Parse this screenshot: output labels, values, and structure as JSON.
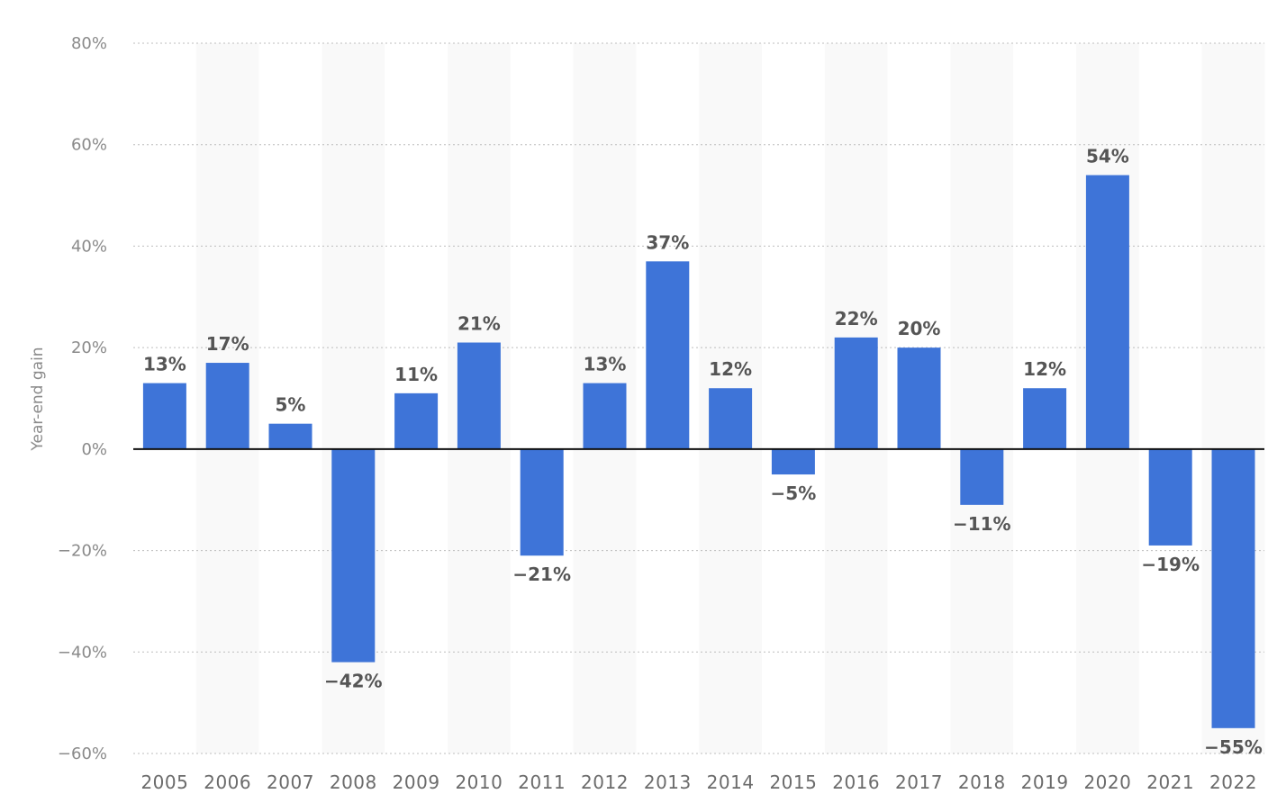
{
  "chart_data": {
    "type": "bar",
    "title": "",
    "xlabel": "",
    "ylabel": "Year-end gain",
    "ylim": [
      -60,
      80
    ],
    "yticks": [
      80,
      60,
      40,
      20,
      0,
      -20,
      -40,
      -60
    ],
    "ytick_suffix": "%",
    "grid": true,
    "categories": [
      "2005",
      "2006",
      "2007",
      "2008",
      "2009",
      "2010",
      "2011",
      "2012",
      "2013",
      "2014",
      "2015",
      "2016",
      "2017",
      "2018",
      "2019",
      "2020",
      "2021",
      "2022"
    ],
    "values": [
      13,
      17,
      5,
      -42,
      11,
      21,
      -21,
      13,
      37,
      12,
      -5,
      22,
      20,
      -11,
      12,
      54,
      -19,
      -55
    ],
    "value_labels": [
      "13%",
      "17%",
      "5%",
      "-42%",
      "11%",
      "21%",
      "-21%",
      "13%",
      "37%",
      "12%",
      "-5%",
      "22%",
      "20%",
      "-11%",
      "12%",
      "54%",
      "-19%",
      "-55%"
    ],
    "bar_color": "#3e74d8",
    "band_color": "#f9f9f9"
  }
}
